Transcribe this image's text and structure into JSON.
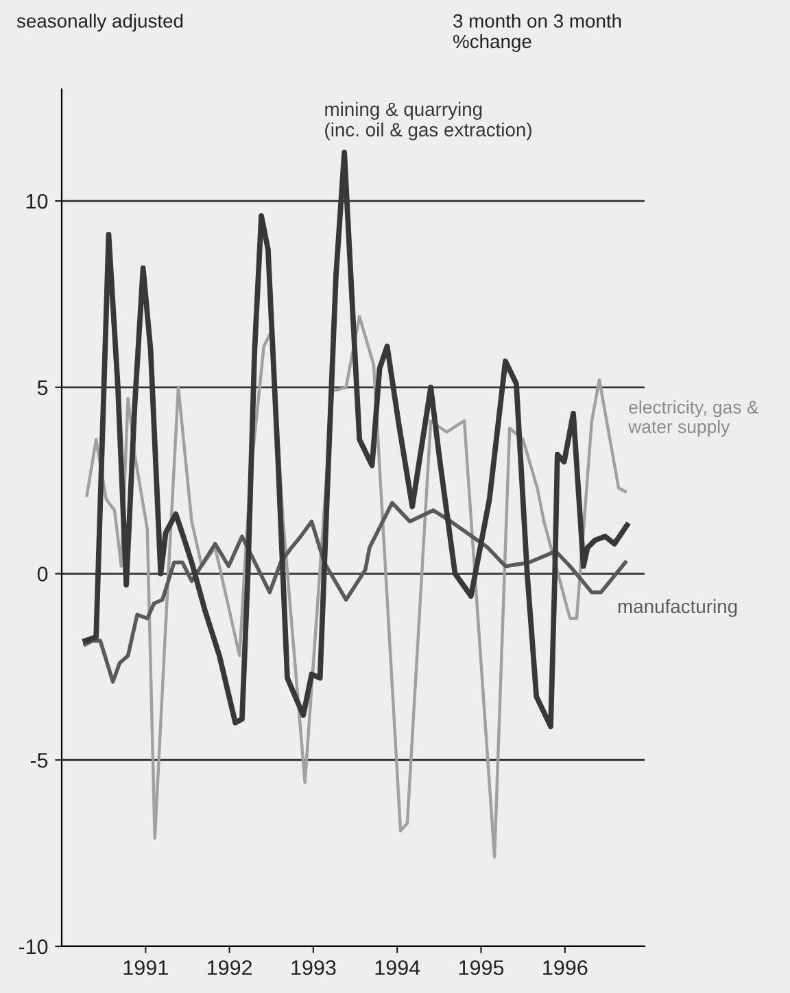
{
  "chart_data": {
    "type": "line",
    "annotations": [
      "seasonally adjusted",
      "3 month on 3 month\n%change"
    ],
    "xlim": [
      1990,
      1996.95
    ],
    "xticks": [
      1991,
      1992,
      1993,
      1994,
      1995,
      1996
    ],
    "ylim": [
      -10,
      13
    ],
    "yticks": [
      -10,
      -5,
      0,
      5,
      10
    ],
    "grid": "y",
    "legend": false,
    "series": [
      {
        "name": "electricity, gas &\nwater supply",
        "color": "#a0a0a0",
        "x": [
          1990.3,
          1990.41,
          1990.53,
          1990.63,
          1990.71,
          1990.79,
          1990.87,
          1991.02,
          1991.11,
          1991.26,
          1991.39,
          1991.55,
          1991.67,
          1991.83,
          1992.12,
          1992.2,
          1992.25,
          1992.41,
          1992.5,
          1992.64,
          1992.9,
          1993.23,
          1993.39,
          1993.55,
          1993.72,
          1994.04,
          1994.12,
          1994.4,
          1994.59,
          1994.8,
          1995.16,
          1995.34,
          1995.5,
          1995.67,
          1995.75,
          1996.06,
          1996.14,
          1996.32,
          1996.41,
          1996.64,
          1996.72
        ],
        "values": [
          2.1,
          3.6,
          2.0,
          1.7,
          0.2,
          4.7,
          3.2,
          1.2,
          -7.1,
          -0.5,
          5.0,
          1.4,
          0.2,
          0.7,
          -2.2,
          0.8,
          2.6,
          6.1,
          6.5,
          1.4,
          -5.6,
          4.9,
          5.0,
          6.9,
          5.6,
          -6.9,
          -6.7,
          4.1,
          3.8,
          4.1,
          -7.6,
          3.9,
          3.6,
          2.3,
          1.4,
          -1.2,
          -1.2,
          4.1,
          5.2,
          2.3,
          2.2
        ]
      },
      {
        "name": "manufacturing",
        "color": "#5a5a5a",
        "x": [
          1990.28,
          1990.37,
          1990.46,
          1990.61,
          1990.69,
          1990.79,
          1990.9,
          1991.02,
          1991.1,
          1991.2,
          1991.34,
          1991.44,
          1991.55,
          1991.83,
          1991.99,
          1992.15,
          1992.48,
          1992.61,
          1992.74,
          1992.85,
          1992.98,
          1993.13,
          1993.39,
          1993.62,
          1993.67,
          1993.94,
          1994.15,
          1994.43,
          1994.64,
          1995.08,
          1995.29,
          1995.57,
          1995.89,
          1996.06,
          1996.32,
          1996.43,
          1996.72
        ],
        "values": [
          -1.9,
          -1.8,
          -1.8,
          -2.9,
          -2.4,
          -2.2,
          -1.1,
          -1.2,
          -0.8,
          -0.7,
          0.3,
          0.3,
          -0.2,
          0.8,
          0.2,
          1.0,
          -0.5,
          0.3,
          0.7,
          1.0,
          1.4,
          0.3,
          -0.7,
          0.1,
          0.7,
          1.9,
          1.4,
          1.7,
          1.4,
          0.7,
          0.2,
          0.3,
          0.6,
          0.2,
          -0.5,
          -0.5,
          0.3
        ]
      },
      {
        "name": "mining & quarrying\n(inc. oil & gas extraction)",
        "color": "#383838",
        "x": [
          1990.28,
          1990.41,
          1990.56,
          1990.67,
          1990.77,
          1990.87,
          1990.97,
          1991.06,
          1991.18,
          1991.24,
          1991.36,
          1991.45,
          1991.55,
          1991.71,
          1991.88,
          1992.07,
          1992.15,
          1992.22,
          1992.3,
          1992.38,
          1992.46,
          1992.58,
          1992.69,
          1992.88,
          1992.98,
          1993.08,
          1993.18,
          1993.27,
          1993.37,
          1993.47,
          1993.55,
          1993.7,
          1993.79,
          1993.88,
          1994.02,
          1994.18,
          1994.4,
          1994.51,
          1994.69,
          1994.88,
          1995.1,
          1995.29,
          1995.42,
          1995.55,
          1995.66,
          1995.83,
          1995.88,
          1995.91,
          1995.99,
          1996.1,
          1996.22,
          1996.27,
          1996.36,
          1996.48,
          1996.59,
          1996.74
        ],
        "values": [
          -1.8,
          -1.7,
          9.1,
          5.0,
          -0.3,
          4.5,
          8.2,
          6.0,
          0.0,
          1.1,
          1.6,
          1.0,
          0.3,
          -1.0,
          -2.2,
          -4.0,
          -3.9,
          0.0,
          6,
          9.6,
          8.7,
          3,
          -2.8,
          -3.8,
          -2.7,
          -2.8,
          3,
          8,
          11.3,
          7,
          3.6,
          2.9,
          5.5,
          6.1,
          4,
          1.8,
          5.0,
          3,
          0.0,
          -0.6,
          2,
          5.7,
          5.1,
          0,
          -3.3,
          -4.1,
          0,
          3.2,
          3.0,
          4.3,
          0.2,
          0.7,
          0.9,
          1.0,
          0.8,
          1.3
        ]
      }
    ]
  }
}
